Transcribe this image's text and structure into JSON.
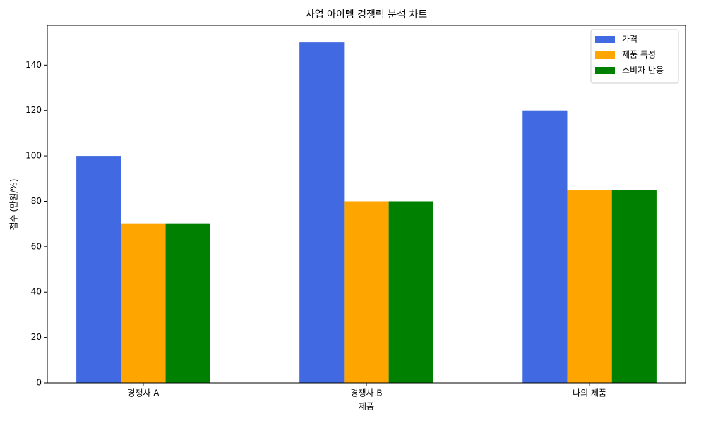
{
  "chart_data": {
    "type": "bar",
    "title": "사업 아이템 경쟁력 분석 차트",
    "x_label": "제품",
    "y_label": "점수 (만원/%)",
    "categories": [
      "경쟁사 A",
      "경쟁사 B",
      "나의 제품"
    ],
    "series": [
      {
        "name": "가격",
        "color": "#4169e1",
        "values": [
          100,
          150,
          120
        ]
      },
      {
        "name": "제품 특성",
        "color": "#ffa500",
        "values": [
          70,
          80,
          85
        ]
      },
      {
        "name": "소비자 반응",
        "color": "#008000",
        "values": [
          70,
          80,
          85
        ]
      }
    ],
    "ylim": [
      0,
      157.5
    ],
    "yticks": [
      0,
      20,
      40,
      60,
      80,
      100,
      120,
      140
    ],
    "grid": false,
    "legend": "upper right"
  }
}
